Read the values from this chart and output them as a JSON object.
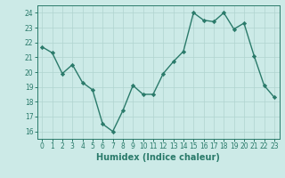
{
  "x": [
    0,
    1,
    2,
    3,
    4,
    5,
    6,
    7,
    8,
    9,
    10,
    11,
    12,
    13,
    14,
    15,
    16,
    17,
    18,
    19,
    20,
    21,
    22,
    23
  ],
  "y": [
    21.7,
    21.3,
    19.9,
    20.5,
    19.3,
    18.8,
    16.5,
    16.0,
    17.4,
    19.1,
    18.5,
    18.5,
    19.9,
    20.7,
    21.4,
    24.0,
    23.5,
    23.4,
    24.0,
    22.9,
    23.3,
    21.1,
    19.1,
    18.3
  ],
  "line_color": "#2a7a6a",
  "marker": "D",
  "markersize": 2.2,
  "linewidth": 1.0,
  "bg_color": "#cceae7",
  "grid_color": "#b0d4d0",
  "xlabel": "Humidex (Indice chaleur)",
  "xlim": [
    -0.5,
    23.5
  ],
  "ylim": [
    15.5,
    24.5
  ],
  "yticks": [
    16,
    17,
    18,
    19,
    20,
    21,
    22,
    23,
    24
  ],
  "xticks": [
    0,
    1,
    2,
    3,
    4,
    5,
    6,
    7,
    8,
    9,
    10,
    11,
    12,
    13,
    14,
    15,
    16,
    17,
    18,
    19,
    20,
    21,
    22,
    23
  ],
  "tick_label_fontsize": 5.5,
  "xlabel_fontsize": 7.0
}
